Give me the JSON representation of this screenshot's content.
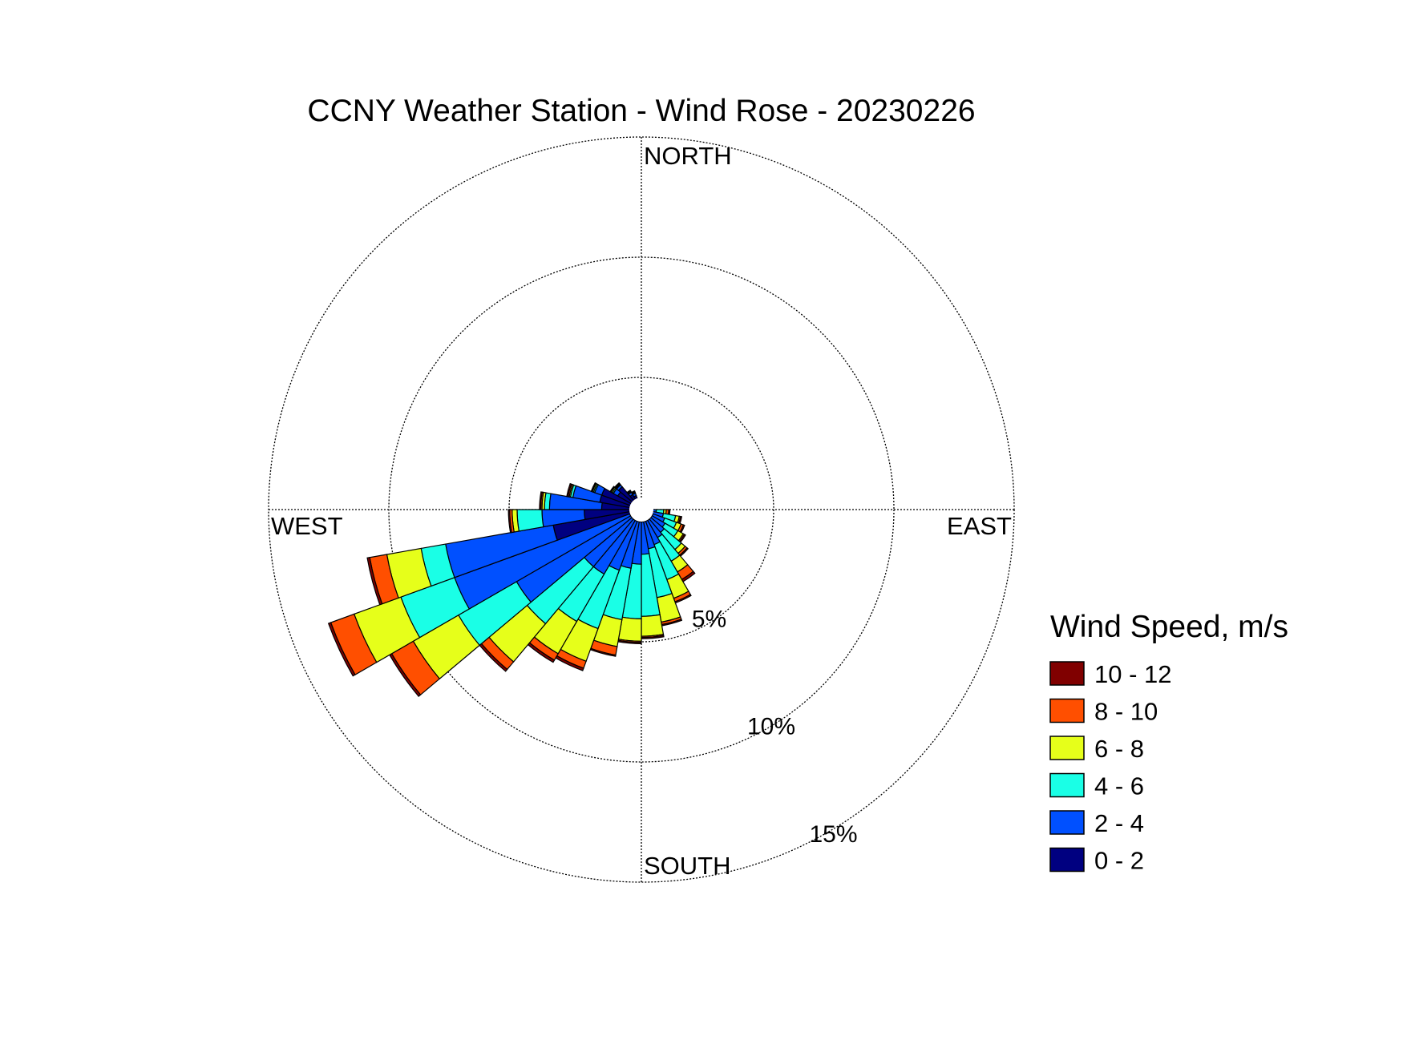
{
  "chart_data": {
    "type": "wind-rose",
    "title": "CCNY Weather Station - Wind Rose - 20230226",
    "directions": {
      "north": "NORTH",
      "east": "EAST",
      "south": "SOUTH",
      "west": "WEST"
    },
    "radial_axis": {
      "max": 15,
      "ticks": [
        5,
        10,
        15
      ],
      "tick_labels": [
        "5%",
        "10%",
        "15%"
      ],
      "grid": true
    },
    "legend": {
      "title": "Wind Speed, m/s",
      "placement": "right",
      "items": [
        {
          "label": "10 - 12",
          "color": "#800000"
        },
        {
          "label": "8 - 10",
          "color": "#ff4f00"
        },
        {
          "label": "6 - 8",
          "color": "#e6ff1a"
        },
        {
          "label": "4 - 6",
          "color": "#1affe6"
        },
        {
          "label": "2 - 4",
          "color": "#0050ff"
        },
        {
          "label": "0 - 2",
          "color": "#000080"
        }
      ]
    },
    "bins": [
      "0 - 2",
      "2 - 4",
      "4 - 6",
      "6 - 8",
      "8 - 10",
      "10 - 12"
    ],
    "bin_colors": [
      "#000080",
      "#0050ff",
      "#1affe6",
      "#e6ff1a",
      "#ff4f00",
      "#800000"
    ],
    "sector_width_deg": 10,
    "sectors": [
      {
        "direction": 95,
        "cumulative": [
          0.4,
          0.6,
          0.9,
          1.0,
          1.1,
          1.15
        ]
      },
      {
        "direction": 105,
        "cumulative": [
          0.45,
          0.9,
          1.4,
          1.55,
          1.6,
          1.65
        ]
      },
      {
        "direction": 115,
        "cumulative": [
          0.5,
          1.0,
          1.5,
          1.7,
          1.8,
          1.85
        ]
      },
      {
        "direction": 125,
        "cumulative": [
          0.5,
          1.1,
          1.7,
          1.95,
          2.0,
          2.05
        ]
      },
      {
        "direction": 135,
        "cumulative": [
          0.5,
          1.2,
          2.1,
          2.3,
          2.4,
          2.45
        ]
      },
      {
        "direction": 145,
        "cumulative": [
          0.5,
          1.3,
          2.4,
          2.9,
          3.25,
          3.35
        ]
      },
      {
        "direction": 155,
        "cumulative": [
          0.5,
          1.5,
          3.0,
          3.8,
          3.95,
          4.0
        ]
      },
      {
        "direction": 165,
        "cumulative": [
          0.5,
          1.6,
          3.6,
          4.6,
          4.7,
          4.75
        ]
      },
      {
        "direction": 175,
        "cumulative": [
          0.5,
          1.8,
          4.3,
          5.1,
          5.15,
          5.2
        ]
      },
      {
        "direction": 185,
        "cumulative": [
          0.5,
          2.2,
          4.4,
          5.3,
          5.35,
          5.4
        ]
      },
      {
        "direction": 195,
        "cumulative": [
          0.5,
          2.4,
          4.5,
          5.6,
          5.95,
          6.0
        ]
      },
      {
        "direction": 205,
        "cumulative": [
          0.5,
          2.6,
          5.1,
          6.5,
          6.8,
          6.9
        ]
      },
      {
        "direction": 215,
        "cumulative": [
          0.5,
          3.0,
          5.2,
          6.7,
          7.0,
          7.1
        ]
      },
      {
        "direction": 225,
        "cumulative": [
          0.5,
          3.0,
          6.0,
          8.0,
          8.4,
          8.5
        ]
      },
      {
        "direction": 235,
        "cumulative": [
          0.5,
          5.8,
          8.5,
          10.6,
          11.6,
          11.7
        ]
      },
      {
        "direction": 245,
        "cumulative": [
          0.5,
          8.0,
          10.3,
          12.3,
          13.3,
          13.4
        ]
      },
      {
        "direction": 255,
        "cumulative": [
          3.6,
          8.0,
          9.0,
          10.4,
          11.1,
          11.2
        ]
      },
      {
        "direction": 265,
        "cumulative": [
          2.3,
          4.0,
          5.0,
          5.2,
          5.3,
          5.35
        ]
      },
      {
        "direction": 275,
        "cumulative": [
          1.6,
          3.7,
          3.9,
          4.0,
          4.05,
          4.1
        ]
      },
      {
        "direction": 285,
        "cumulative": [
          1.7,
          2.8,
          2.9,
          2.95,
          3.0,
          3.05
        ]
      },
      {
        "direction": 295,
        "cumulative": [
          1.7,
          2.0,
          2.05,
          2.1,
          2.12,
          2.15
        ]
      },
      {
        "direction": 305,
        "cumulative": [
          1.1,
          1.3,
          1.35,
          1.4,
          1.42,
          1.45
        ]
      },
      {
        "direction": 315,
        "cumulative": [
          1.2,
          1.3,
          1.32,
          1.35,
          1.37,
          1.4
        ]
      },
      {
        "direction": 325,
        "cumulative": [
          0.7,
          0.8,
          0.82,
          0.85,
          0.87,
          0.9
        ]
      },
      {
        "direction": 335,
        "cumulative": [
          0.6,
          0.7,
          0.72,
          0.75,
          0.77,
          0.8
        ]
      }
    ]
  }
}
